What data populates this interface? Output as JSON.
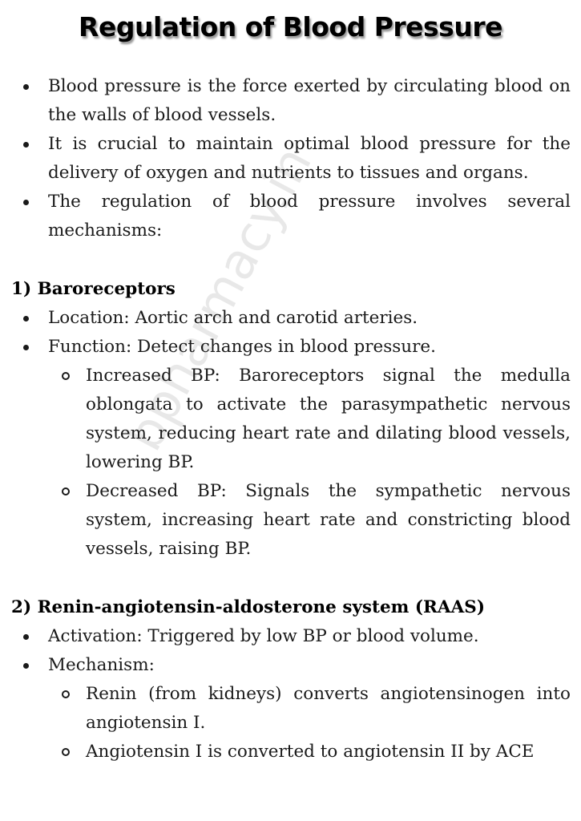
{
  "title": "Regulation of Blood Pressure",
  "watermark": "bpharmacy.in",
  "intro": [
    "Blood pressure is the force exerted by circulating blood on the walls of blood vessels.",
    "It is crucial to maintain optimal blood pressure for the delivery of oxygen and nutrients to tissues and organs.",
    "The regulation of blood pressure involves several mechanisms:"
  ],
  "sections": [
    {
      "heading": "1) Baroreceptors",
      "items": [
        "Location: Aortic arch and carotid arteries.",
        "Function: Detect changes in blood pressure."
      ],
      "subitems": [
        "Increased BP: Baroreceptors signal the medulla oblongata to activate the parasympathetic nervous system, reducing heart rate and dilating blood vessels, lowering BP.",
        "Decreased BP: Signals the sympathetic nervous system, increasing heart rate and constricting blood vessels, raising BP."
      ]
    },
    {
      "heading": "2) Renin-angiotensin-aldosterone system (RAAS)",
      "items": [
        "Activation: Triggered by low BP or blood volume.",
        "Mechanism:"
      ],
      "subitems": [
        "Renin (from kidneys) converts angiotensinogen into angiotensin I.",
        "Angiotensin I is converted to angiotensin II by ACE"
      ]
    }
  ]
}
